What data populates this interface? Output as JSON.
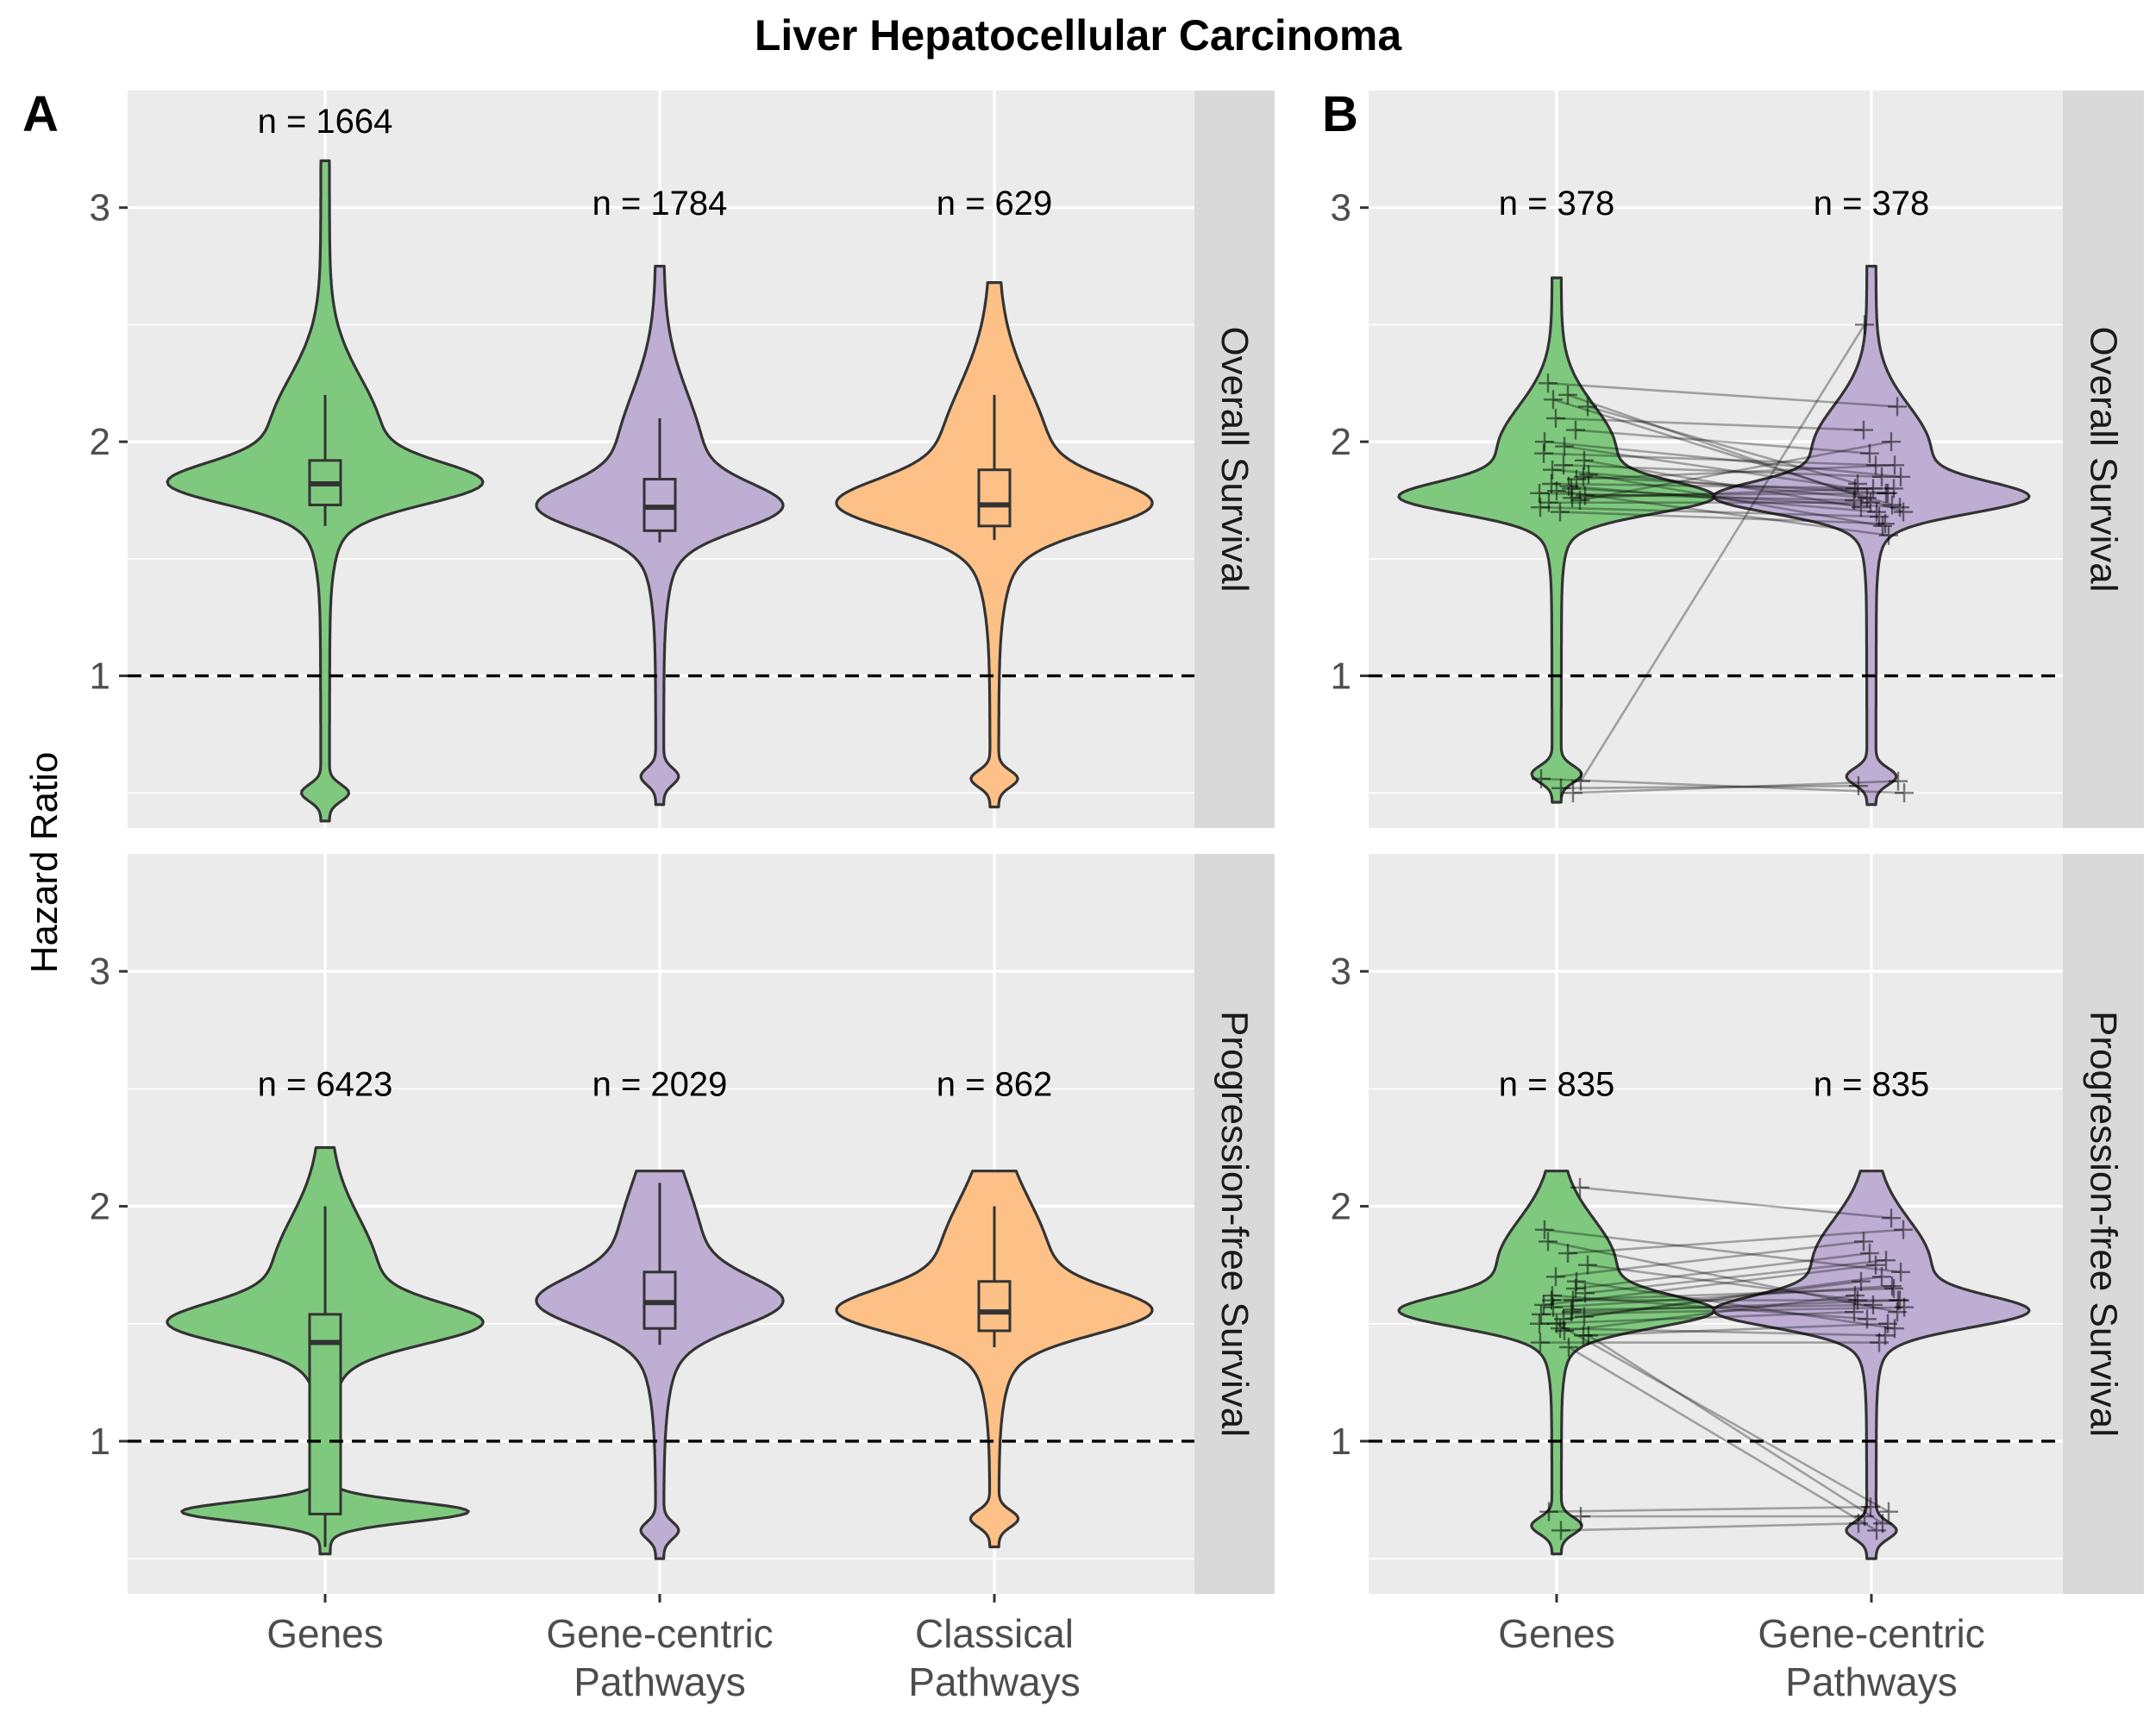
{
  "title": "Liver Hepatocellular Carcinoma",
  "y_axis_label": "Hazard Ratio",
  "colors": {
    "Genes": "#7fc97f",
    "Gene-centric Pathways": "#beaed4",
    "Classical Pathways": "#fdc086",
    "panel_bg": "#ebebeb",
    "strip_bg": "#d9d9d9",
    "outline": "#333333"
  },
  "chart_data": [
    {
      "panel": "A",
      "type": "violin",
      "categories": [
        {
          "key": "Genes",
          "lines": [
            "Genes"
          ]
        },
        {
          "key": "Gene-centric Pathways",
          "lines": [
            "Gene-centric",
            "Pathways"
          ]
        },
        {
          "key": "Classical Pathways",
          "lines": [
            "Classical",
            "Pathways"
          ]
        }
      ],
      "ylabel": "Hazard Ratio",
      "y_ticks": [
        1,
        2,
        3
      ],
      "ylim": [
        0.35,
        3.5
      ],
      "reference_line": 1,
      "grid": true,
      "facets": [
        {
          "strip": "Overall Survival",
          "groups": [
            {
              "category": "Genes",
              "n_label": "n = 1664",
              "n": 1664,
              "box": {
                "q1": 1.73,
                "median": 1.82,
                "q3": 1.92,
                "whisker_low": 1.64,
                "whisker_high": 2.2
              },
              "range": [
                0.38,
                3.2
              ]
            },
            {
              "category": "Gene-centric Pathways",
              "n_label": "n = 1784",
              "n": 1784,
              "box": {
                "q1": 1.62,
                "median": 1.72,
                "q3": 1.84,
                "whisker_low": 1.57,
                "whisker_high": 2.1
              },
              "range": [
                0.45,
                2.75
              ]
            },
            {
              "category": "Classical Pathways",
              "n_label": "n = 629",
              "n": 629,
              "box": {
                "q1": 1.64,
                "median": 1.73,
                "q3": 1.88,
                "whisker_low": 1.58,
                "whisker_high": 2.2
              },
              "range": [
                0.44,
                2.68
              ]
            }
          ]
        },
        {
          "strip": "Progression-free Survival",
          "groups": [
            {
              "category": "Genes",
              "n_label": "n = 6423",
              "n": 6423,
              "box": {
                "q1": 0.69,
                "median": 1.42,
                "q3": 1.54,
                "whisker_low": 0.55,
                "whisker_high": 2.0
              },
              "range": [
                0.52,
                2.25
              ]
            },
            {
              "category": "Gene-centric Pathways",
              "n_label": "n = 2029",
              "n": 2029,
              "box": {
                "q1": 1.48,
                "median": 1.59,
                "q3": 1.72,
                "whisker_low": 1.41,
                "whisker_high": 2.1
              },
              "range": [
                0.5,
                2.15
              ]
            },
            {
              "category": "Classical Pathways",
              "n_label": "n = 862",
              "n": 862,
              "box": {
                "q1": 1.47,
                "median": 1.55,
                "q3": 1.68,
                "whisker_low": 1.4,
                "whisker_high": 2.0
              },
              "range": [
                0.55,
                2.15
              ]
            }
          ]
        }
      ]
    },
    {
      "panel": "B",
      "type": "violin",
      "categories": [
        {
          "key": "Genes",
          "lines": [
            "Genes"
          ]
        },
        {
          "key": "Gene-centric Pathways",
          "lines": [
            "Gene-centric",
            "Pathways"
          ]
        }
      ],
      "ylabel": "Hazard Ratio",
      "y_ticks": [
        1,
        2,
        3
      ],
      "ylim": [
        0.35,
        3.5
      ],
      "reference_line": 1,
      "grid": true,
      "facets": [
        {
          "strip": "Overall Survival",
          "groups": [
            {
              "category": "Genes",
              "n_label": "n = 378",
              "n": 378,
              "range": [
                0.46,
                2.7
              ]
            },
            {
              "category": "Gene-centric Pathways",
              "n_label": "n = 378",
              "n": 378,
              "range": [
                0.45,
                2.75
              ]
            }
          ],
          "paired_points": [
            [
              1.78,
              1.75
            ],
            [
              1.8,
              1.72
            ],
            [
              1.82,
              1.8
            ],
            [
              1.85,
              1.78
            ],
            [
              1.9,
              1.85
            ],
            [
              1.95,
              1.9
            ],
            [
              2.05,
              1.95
            ],
            [
              2.1,
              2.05
            ],
            [
              2.15,
              1.82
            ],
            [
              2.2,
              1.7
            ],
            [
              2.25,
              2.15
            ],
            [
              1.75,
              2.0
            ],
            [
              1.7,
              1.65
            ],
            [
              1.72,
              1.68
            ],
            [
              1.76,
              1.8
            ],
            [
              1.88,
              1.76
            ],
            [
              1.92,
              1.72
            ],
            [
              1.98,
              1.8
            ],
            [
              2.0,
              1.85
            ],
            [
              1.84,
              1.9
            ],
            [
              1.79,
              1.6
            ],
            [
              1.86,
              1.64
            ],
            [
              1.81,
              1.7
            ],
            [
              1.74,
              1.74
            ],
            [
              0.55,
              2.5
            ],
            [
              0.52,
              0.53
            ],
            [
              0.56,
              0.5
            ],
            [
              0.5,
              0.55
            ],
            [
              2.18,
              1.73
            ],
            [
              1.77,
              1.78
            ]
          ]
        },
        {
          "strip": "Progression-free Survival",
          "groups": [
            {
              "category": "Genes",
              "n_label": "n = 835",
              "n": 835,
              "range": [
                0.52,
                2.15
              ]
            },
            {
              "category": "Gene-centric Pathways",
              "n_label": "n = 835",
              "n": 835,
              "range": [
                0.5,
                2.15
              ]
            }
          ],
          "paired_points": [
            [
              1.5,
              1.55
            ],
            [
              1.55,
              1.6
            ],
            [
              1.6,
              1.65
            ],
            [
              1.45,
              1.5
            ],
            [
              1.52,
              1.7
            ],
            [
              1.58,
              1.75
            ],
            [
              1.65,
              1.8
            ],
            [
              1.7,
              1.85
            ],
            [
              1.75,
              1.6
            ],
            [
              1.8,
              1.9
            ],
            [
              1.85,
              1.55
            ],
            [
              2.08,
              1.95
            ],
            [
              1.48,
              1.45
            ],
            [
              1.42,
              1.42
            ],
            [
              1.56,
              1.58
            ],
            [
              1.62,
              1.52
            ],
            [
              1.53,
              1.68
            ],
            [
              1.47,
              1.62
            ],
            [
              1.9,
              1.72
            ],
            [
              1.68,
              1.48
            ],
            [
              1.5,
              0.7
            ],
            [
              1.45,
              0.65
            ],
            [
              1.4,
              0.62
            ],
            [
              0.7,
              0.72
            ],
            [
              0.68,
              0.68
            ],
            [
              0.62,
              0.65
            ],
            [
              1.54,
              1.57
            ],
            [
              1.6,
              1.6
            ],
            [
              1.57,
              1.66
            ],
            [
              1.63,
              1.77
            ]
          ]
        }
      ]
    }
  ]
}
